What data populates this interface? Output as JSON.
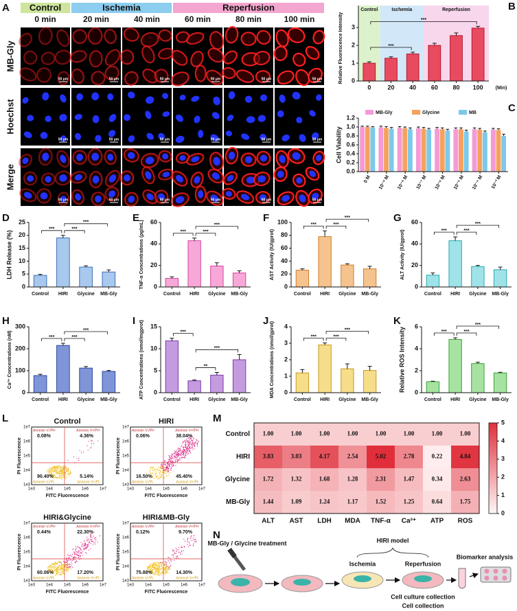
{
  "panel_labels": [
    "A",
    "B",
    "C",
    "D",
    "E",
    "F",
    "G",
    "H",
    "I",
    "J",
    "K",
    "L",
    "M",
    "N"
  ],
  "panel_a": {
    "groups": [
      {
        "label": "Control",
        "color": "#cde59c"
      },
      {
        "label": "Ischemia",
        "color": "#8ccdf0"
      },
      {
        "label": "Reperfusion",
        "color": "#f3a6cf"
      }
    ],
    "times": [
      "0 min",
      "20 min",
      "40 min",
      "60 min",
      "80 min",
      "100 min"
    ],
    "rows": [
      "MB-Gly",
      "Hoechst",
      "Merge"
    ],
    "scale_bar": "50 μm"
  },
  "chart_data": [
    {
      "type": "bar",
      "y_label": "Relative Fluorescence Intensity",
      "x_label": "(Min)",
      "categories": [
        "0",
        "20",
        "40",
        "60",
        "80",
        "100"
      ],
      "values": [
        1.0,
        1.28,
        1.52,
        2.0,
        2.55,
        2.97
      ],
      "errors": [
        0.08,
        0.08,
        0.1,
        0.12,
        0.15,
        0.1
      ],
      "color": "#e84a5f",
      "edge_color": "#b3182f",
      "ylim": [
        0,
        3.7
      ],
      "yticks": [
        0,
        1,
        2,
        3
      ],
      "regions": [
        {
          "label": "Control",
          "span": [
            "0",
            "0"
          ],
          "color": "#dcf2cc"
        },
        {
          "label": "Ischemia",
          "span": [
            "20",
            "40"
          ],
          "color": "#d2e8f8"
        },
        {
          "label": "Reperfusion",
          "span": [
            "60",
            "100"
          ],
          "color": "#f8d6ec"
        }
      ],
      "significance": [
        {
          "between": [
            "0",
            "40"
          ],
          "label": "***"
        },
        {
          "between": [
            "0",
            "100"
          ],
          "label": "***"
        }
      ]
    },
    {
      "type": "bar",
      "y_label": "Cell Viability",
      "categories": [
        "0 M",
        "10⁻⁹ M",
        "10⁻⁸ M",
        "10⁻⁷ M",
        "10⁻⁶ M",
        "10⁻⁵ M",
        "10⁻⁴ M",
        "10⁻³ M"
      ],
      "series": [
        {
          "name": "MB-Gly",
          "color": "#f59ad6",
          "values": [
            1.0,
            0.99,
            0.98,
            0.97,
            0.96,
            0.95,
            0.95,
            0.94
          ],
          "errors": [
            0.02,
            0.03,
            0.03,
            0.03,
            0.03,
            0.03,
            0.03,
            0.03
          ]
        },
        {
          "name": "Glycine",
          "color": "#f5a25e",
          "values": [
            1.0,
            0.98,
            0.97,
            0.96,
            0.95,
            0.95,
            0.94,
            0.93
          ],
          "errors": [
            0.02,
            0.03,
            0.03,
            0.03,
            0.03,
            0.03,
            0.03,
            0.03
          ]
        },
        {
          "name": "MB",
          "color": "#7ec8ea",
          "values": [
            0.99,
            0.96,
            0.95,
            0.94,
            0.92,
            0.9,
            0.88,
            0.8
          ],
          "errors": [
            0.02,
            0.03,
            0.03,
            0.03,
            0.03,
            0.03,
            0.03,
            0.04
          ]
        }
      ],
      "ylim": [
        0,
        1.2
      ],
      "yticks": [
        {
          "value": 0,
          "label": "0.0"
        },
        {
          "value": 0.2,
          "label": "0.2"
        },
        {
          "value": 0.4,
          "label": "0.4"
        },
        {
          "value": 0.6,
          "label": "0.6"
        },
        {
          "value": 0.8,
          "label": "0.8"
        },
        {
          "value": 1,
          "label": "1.0"
        },
        {
          "value": 1.2,
          "label": "1.2"
        }
      ]
    },
    {
      "type": "bar",
      "y_label": "LDH Release (%)",
      "categories": [
        "Control",
        "HIRI",
        "Glycine",
        "MB-Gly"
      ],
      "values": [
        4.5,
        19,
        7.7,
        5.8
      ],
      "errors": [
        0.4,
        1.0,
        0.5,
        0.8
      ],
      "color": "#a8c8ee",
      "edge_color": "#3b6fb6",
      "ylim": [
        0,
        25
      ],
      "yticks": [
        0,
        5,
        10,
        15,
        20,
        25
      ],
      "significance": [
        {
          "between": [
            "Control",
            "HIRI"
          ],
          "label": "***"
        },
        {
          "between": [
            "HIRI",
            "Glycine"
          ],
          "label": "***"
        },
        {
          "between": [
            "HIRI",
            "MB-Gly"
          ],
          "label": "***"
        }
      ]
    },
    {
      "type": "bar",
      "y_label": "TNF-α Concentrations (pg/mL)",
      "categories": [
        "Control",
        "HIRI",
        "Glycine",
        "MB-Gly"
      ],
      "values": [
        8,
        43,
        19.5,
        13
      ],
      "errors": [
        1.5,
        2.5,
        3,
        2
      ],
      "color": "#f7a8d8",
      "edge_color": "#d0459c",
      "ylim": [
        0,
        60
      ],
      "yticks": [
        0,
        20,
        40,
        60
      ],
      "significance": [
        {
          "between": [
            "Control",
            "HIRI"
          ],
          "label": "***"
        },
        {
          "between": [
            "HIRI",
            "Glycine"
          ],
          "label": "***"
        },
        {
          "between": [
            "HIRI",
            "MB-Gly"
          ],
          "label": "***"
        }
      ]
    },
    {
      "type": "bar",
      "y_label": "AST Activity (IU/gprot)",
      "categories": [
        "Control",
        "HIRI",
        "Glycine",
        "MB-Gly"
      ],
      "values": [
        26,
        78,
        34,
        28
      ],
      "errors": [
        2,
        9,
        2,
        4
      ],
      "color": "#f5c38e",
      "edge_color": "#d07a2a",
      "ylim": [
        0,
        100
      ],
      "yticks": [
        0,
        20,
        40,
        60,
        80,
        100
      ],
      "significance": [
        {
          "between": [
            "Control",
            "HIRI"
          ],
          "label": "***"
        },
        {
          "between": [
            "HIRI",
            "Glycine"
          ],
          "label": "***"
        },
        {
          "between": [
            "HIRI",
            "MB-Gly"
          ],
          "label": "***"
        }
      ]
    },
    {
      "type": "bar",
      "y_label": "ALT Activity (IU/gprot)",
      "categories": [
        "Control",
        "HIRI",
        "Glycine",
        "MB-Gly"
      ],
      "values": [
        11,
        43,
        19,
        16
      ],
      "errors": [
        2,
        3.5,
        1,
        2.5
      ],
      "color": "#9fe3e8",
      "edge_color": "#2aa7b0",
      "ylim": [
        0,
        60
      ],
      "yticks": [
        0,
        20,
        40,
        60
      ],
      "significance": [
        {
          "between": [
            "Control",
            "HIRI"
          ],
          "label": "***"
        },
        {
          "between": [
            "HIRI",
            "Glycine"
          ],
          "label": "***"
        },
        {
          "between": [
            "HIRI",
            "MB-Gly"
          ],
          "label": "***"
        }
      ]
    },
    {
      "type": "bar",
      "y_label": "Ca²⁺ Concentrations (nM)",
      "categories": [
        "Control",
        "HIRI",
        "Glycine",
        "MB-Gly"
      ],
      "values": [
        78,
        215,
        112,
        97
      ],
      "errors": [
        6,
        10,
        7,
        4
      ],
      "color": "#7f95d8",
      "edge_color": "#2f46a0",
      "ylim": [
        0,
        300
      ],
      "yticks": [
        0,
        100,
        200,
        300
      ],
      "significance": [
        {
          "between": [
            "Control",
            "HIRI"
          ],
          "label": "***"
        },
        {
          "between": [
            "HIRI",
            "Glycine"
          ],
          "label": "***"
        },
        {
          "between": [
            "HIRI",
            "MB-Gly"
          ],
          "label": "***"
        }
      ]
    },
    {
      "type": "bar",
      "y_label": "ATP Concentrations (nmol/mgprot)",
      "categories": [
        "Control",
        "HIRI",
        "Glycine",
        "MB-Gly"
      ],
      "values": [
        11.8,
        2.7,
        4.0,
        7.5
      ],
      "errors": [
        0.6,
        0.2,
        0.6,
        1.2
      ],
      "color": "#c59be0",
      "edge_color": "#7a3aa8",
      "ylim": [
        0,
        15
      ],
      "yticks": [
        0,
        5,
        10,
        15
      ],
      "significance": [
        {
          "between": [
            "Control",
            "HIRI"
          ],
          "label": "***"
        },
        {
          "between": [
            "HIRI",
            "Glycine"
          ],
          "label": "**"
        },
        {
          "between": [
            "HIRI",
            "MB-Gly"
          ],
          "label": "***"
        }
      ]
    },
    {
      "type": "bar",
      "y_label": "MDA Concentrations (nmol/gprot)",
      "categories": [
        "Control",
        "HIRI",
        "Glycine",
        "MB-Gly"
      ],
      "values": [
        1.2,
        2.9,
        1.45,
        1.35
      ],
      "errors": [
        0.2,
        0.12,
        0.3,
        0.25
      ],
      "color": "#f5dd8a",
      "edge_color": "#c89a20",
      "ylim": [
        0,
        4
      ],
      "yticks": [
        0,
        1,
        2,
        3,
        4
      ],
      "significance": [
        {
          "between": [
            "Control",
            "HIRI"
          ],
          "label": "***"
        },
        {
          "between": [
            "HIRI",
            "Glycine"
          ],
          "label": "***"
        },
        {
          "between": [
            "HIRI",
            "MB-Gly"
          ],
          "label": "***"
        }
      ]
    },
    {
      "type": "bar",
      "y_label": "Relative ROS Intensity",
      "categories": [
        "Control",
        "HIRI",
        "Glycine",
        "MB-Gly"
      ],
      "values": [
        1.0,
        4.85,
        2.65,
        1.8
      ],
      "errors": [
        0.05,
        0.15,
        0.12,
        0.06
      ],
      "color": "#a6e3a0",
      "edge_color": "#3d9e3a",
      "ylim": [
        0,
        6
      ],
      "yticks": [
        0,
        2,
        4,
        6
      ],
      "significance": [
        {
          "between": [
            "Control",
            "HIRI"
          ],
          "label": "***"
        },
        {
          "between": [
            "HIRI",
            "Glycine"
          ],
          "label": "***"
        },
        {
          "between": [
            "HIRI",
            "MB-Gly"
          ],
          "label": "***"
        }
      ]
    },
    {
      "type": "heatmap",
      "rows": [
        "Control",
        "HIRI",
        "Glycine",
        "MB-Gly"
      ],
      "columns": [
        "ALT",
        "AST",
        "LDH",
        "MDA",
        "TNF-α",
        "Ca²⁺",
        "ATP",
        "ROS"
      ],
      "values": [
        [
          1,
          1,
          1,
          1,
          1,
          1,
          1,
          1
        ],
        [
          3.83,
          3.03,
          4.17,
          2.54,
          5.02,
          2.78,
          0.22,
          4.84
        ],
        [
          1.72,
          1.32,
          1.68,
          1.28,
          2.31,
          1.47,
          0.34,
          2.63
        ],
        [
          1.44,
          1.09,
          1.24,
          1.17,
          1.52,
          1.25,
          0.64,
          1.75
        ]
      ],
      "value_labels": [
        [
          "1.00",
          "1.00",
          "1.00",
          "1.00",
          "1.00",
          "1.00",
          "1.00",
          "1.00"
        ],
        [
          "3.83",
          "3.03",
          "4.17",
          "2.54",
          "5.02",
          "2.78",
          "0.22",
          "4.84"
        ],
        [
          "1.72",
          "1.32",
          "1.68",
          "1.28",
          "2.31",
          "1.47",
          "0.34",
          "2.63"
        ],
        [
          "1.44",
          "1.09",
          "1.24",
          "1.17",
          "1.52",
          "1.25",
          "0.64",
          "1.75"
        ]
      ],
      "colors": [
        "#fff6f6",
        "#e0303b"
      ],
      "clim": [
        0,
        5
      ],
      "cticks": [
        0,
        1,
        2,
        3,
        4,
        5
      ]
    }
  ],
  "flow_cytometry": {
    "y_label": "PI Fluorescence",
    "x_label": "FITC Fluorescence",
    "ticks": [
      "1e3",
      "1e4",
      "1e5",
      "1e6",
      "1e7"
    ],
    "quadrant_labels": [
      "Annexin V-/PI+",
      "Annexin V+/PI+",
      "Annexin V-/PI-",
      "Annexin V+/PI-"
    ],
    "plots": [
      {
        "title": "Control",
        "percentages": [
          "0.08%",
          "4.36%",
          "90.40%",
          "5.14%"
        ]
      },
      {
        "title": "HIRI",
        "percentages": [
          "0.06%",
          "38.04%",
          "16.50%",
          "45.40%"
        ]
      },
      {
        "title": "HIRI&Glycine",
        "percentages": [
          "0.44%",
          "22.30%",
          "60.06%",
          "17.20%"
        ]
      },
      {
        "title": "HIRI&MB-Gly",
        "percentages": [
          "0.12%",
          "9.70%",
          "75.88%",
          "14.30%"
        ]
      }
    ]
  },
  "schematic": {
    "treatment": "MB-Gly / Glycine treatment",
    "model": "HIRI model",
    "steps": [
      "Ischemia",
      "Reperfusion"
    ],
    "analysis": "Biomarker analysis",
    "collection": [
      "Cell culture collection",
      "Cell collection"
    ]
  }
}
